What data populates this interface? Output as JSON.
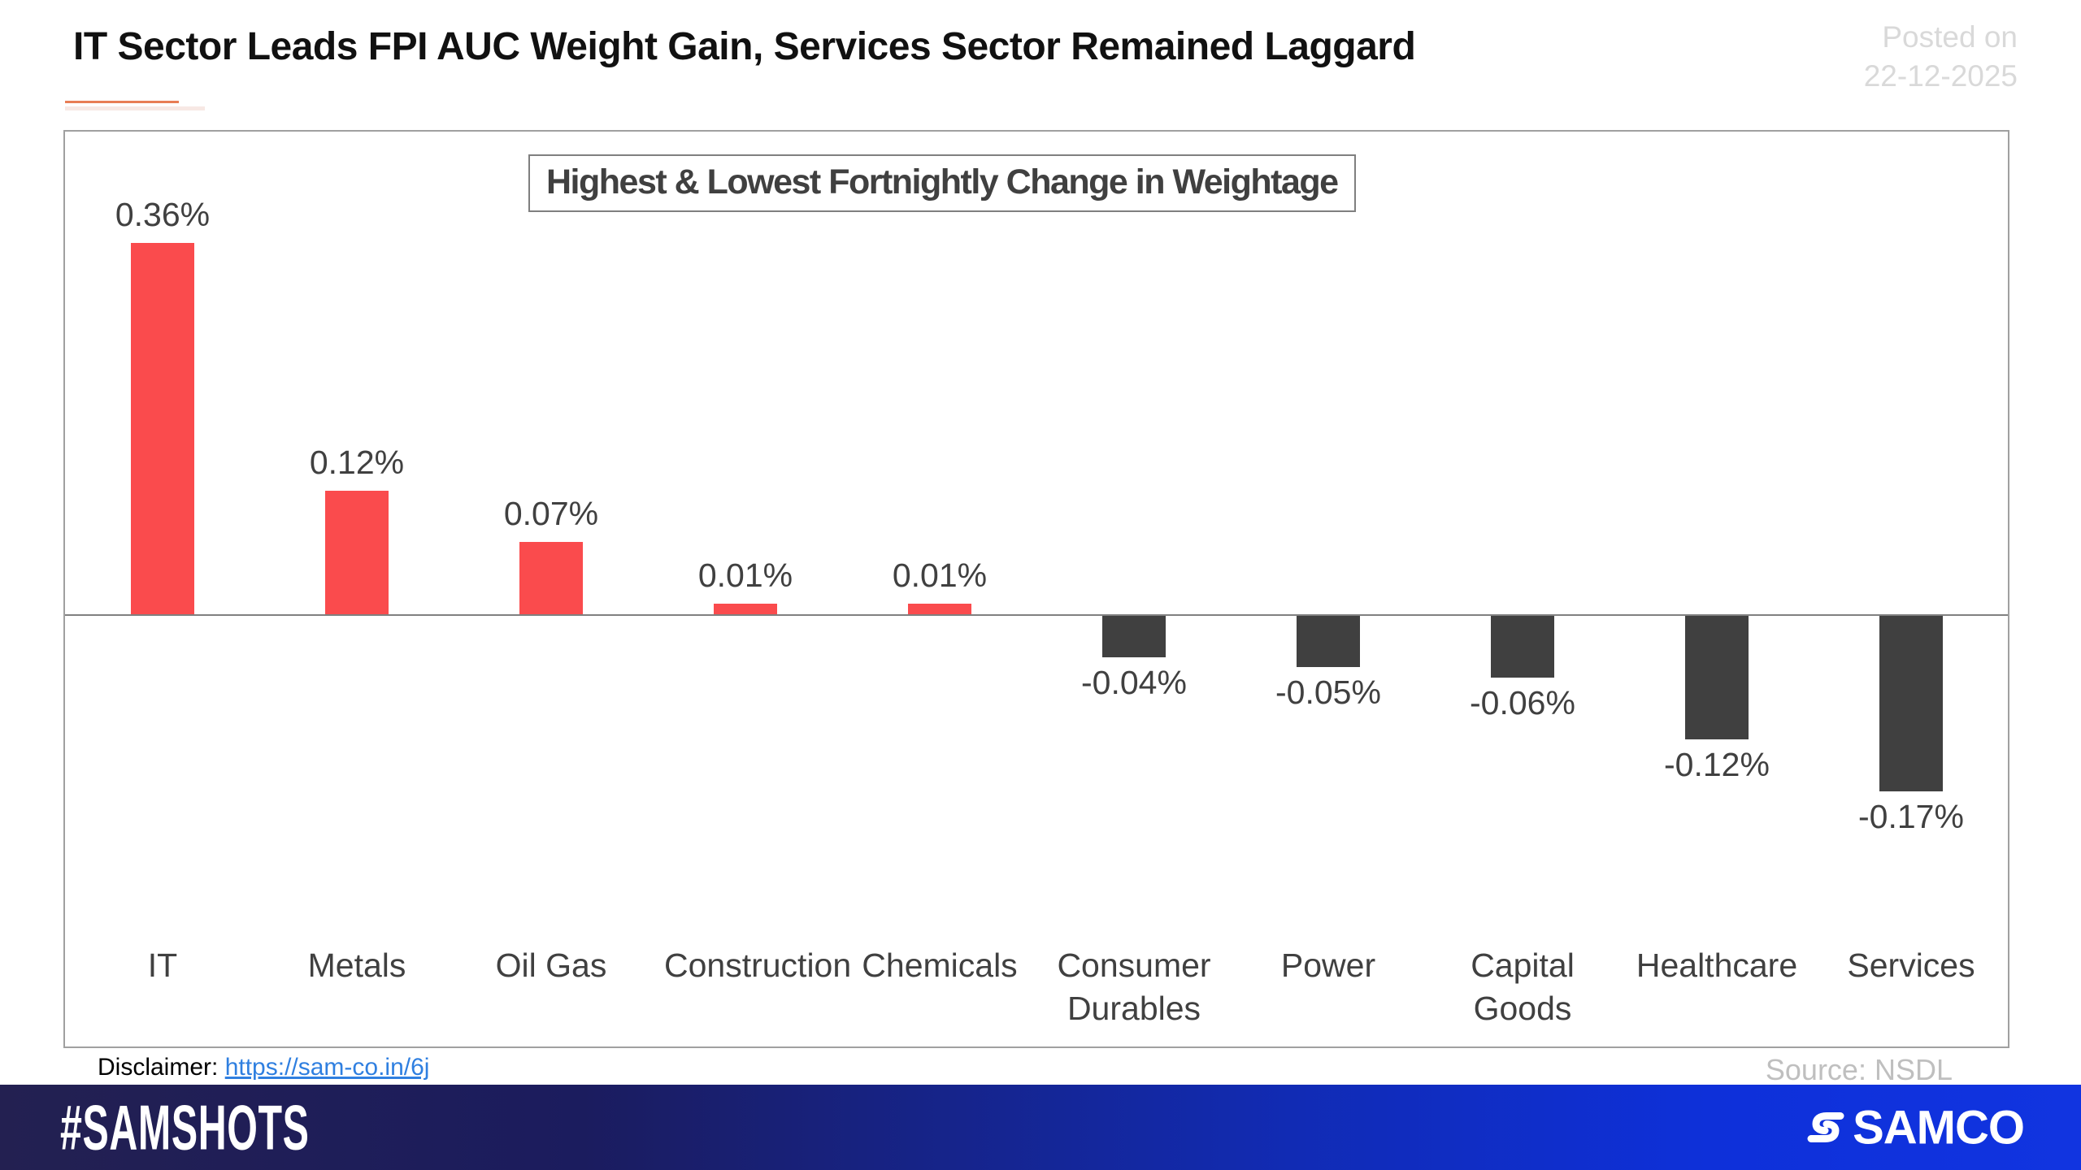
{
  "header": {
    "title": "IT Sector Leads FPI AUC Weight Gain, Services Sector Remained Laggard",
    "posted_on_line1": "Posted on",
    "posted_on_line2": "22-12-2025"
  },
  "chart_data": {
    "type": "bar",
    "title": "Highest & Lowest Fortnightly Change in Weightage",
    "categories": [
      "IT",
      "Metals",
      "Oil Gas",
      "Construction",
      "Chemicals",
      "Consumer Durables",
      "Power",
      "Capital Goods",
      "Healthcare",
      "Services"
    ],
    "values": [
      0.36,
      0.12,
      0.07,
      0.01,
      0.01,
      -0.04,
      -0.05,
      -0.06,
      -0.12,
      -0.17
    ],
    "data_labels": [
      "0.36%",
      "0.12%",
      "0.07%",
      "0.01%",
      "0.01%",
      "-0.04%",
      "-0.05%",
      "-0.06%",
      "-0.12%",
      "-0.17%"
    ],
    "xlabel": "",
    "ylabel": "",
    "ylim": [
      -0.2,
      0.4
    ],
    "grid": false,
    "legend": "none",
    "positive_color": "#fa4b4d",
    "negative_color": "#404040"
  },
  "footnotes": {
    "disclaimer_label": "Disclaimer:",
    "disclaimer_link": "https://sam-co.in/6j",
    "source": "Source: NSDL"
  },
  "footer": {
    "hashtag": "#SAMSHOTS",
    "brand": "SAMCO"
  },
  "colors": {
    "accent_underline": "#e87d55",
    "muted_text": "#d9d9d9",
    "source_text": "#bfbfbf",
    "link_blue": "#2f7fe0",
    "footer_gradient_left": "#232051",
    "footer_gradient_right": "#0e30d9"
  }
}
